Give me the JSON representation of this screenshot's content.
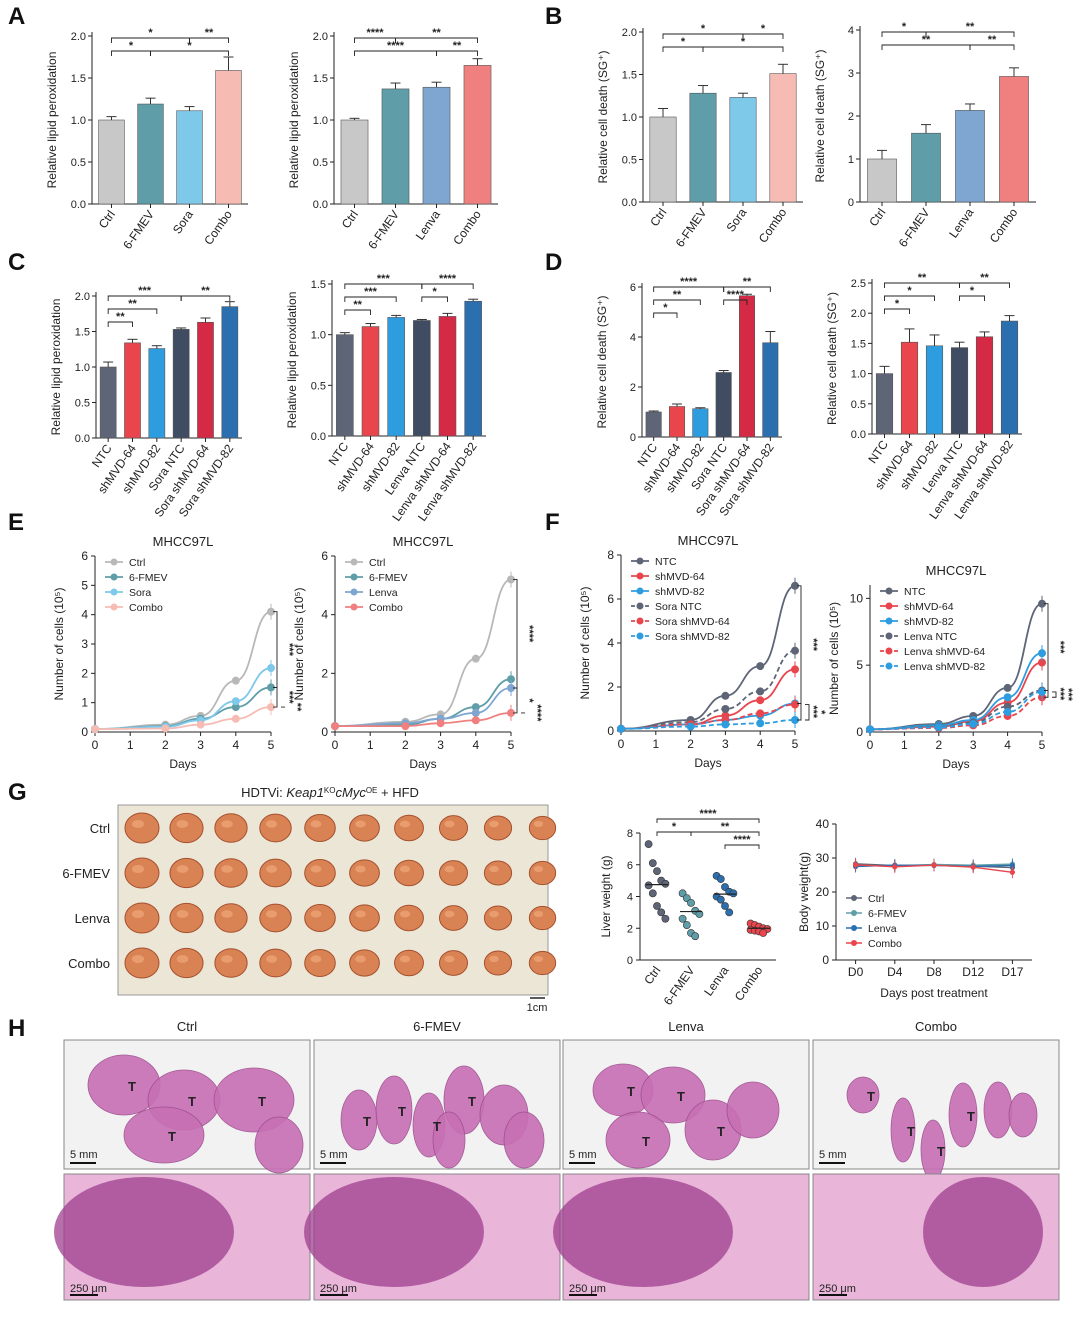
{
  "panel_letters": [
    "A",
    "B",
    "C",
    "D",
    "E",
    "F",
    "G",
    "H"
  ],
  "colors": {
    "ctrl": "#c8c8c8",
    "fmev": "#5f9ea8",
    "sora": "#7ec8ea",
    "lenva": "#7fa6d0",
    "combo_A": "#f6bcb4",
    "combo_A2": "#f08080",
    "ntc": "#5e6577",
    "sh64": "#e8454d",
    "sh82": "#2e9de0",
    "sora_ntc": "#404c62",
    "sh64_dark": "#d42a45",
    "sh82_dark": "#2b6fae"
  },
  "chart_data": [
    {
      "id": "A1",
      "type": "bar",
      "panel": "A",
      "ylabel": "Relative lipid peroxidation",
      "ylim": [
        0,
        2.0
      ],
      "yticks": [
        "0.0",
        "0.5",
        "1.0",
        "1.5",
        "2.0"
      ],
      "categories": [
        "Ctrl",
        "6-FMEV",
        "Sora",
        "Combo"
      ],
      "values": [
        1.0,
        1.19,
        1.11,
        1.59
      ],
      "errors": [
        0.04,
        0.07,
        0.05,
        0.16
      ],
      "colors": [
        "#c8c8c8",
        "#5f9ea8",
        "#7ec8ea",
        "#f6bcb4"
      ],
      "sig": [
        {
          "a": 0,
          "b": 2,
          "label": "*"
        },
        {
          "a": 2,
          "b": 3,
          "label": "**"
        },
        {
          "a": 0,
          "b": 1,
          "label": "*"
        },
        {
          "a": 1,
          "b": 3,
          "label": "*"
        }
      ]
    },
    {
      "id": "A2",
      "type": "bar",
      "panel": "A",
      "ylabel": "Relative lipid peroxidation",
      "ylim": [
        0,
        2.0
      ],
      "yticks": [
        "0.0",
        "0.5",
        "1.0",
        "1.5",
        "2.0"
      ],
      "categories": [
        "Ctrl",
        "6-FMEV",
        "Lenva",
        "Combo"
      ],
      "values": [
        1.0,
        1.37,
        1.39,
        1.65
      ],
      "errors": [
        0.02,
        0.07,
        0.06,
        0.08
      ],
      "colors": [
        "#c8c8c8",
        "#5f9ea8",
        "#7fa6d0",
        "#f08080"
      ],
      "sig": [
        {
          "a": 0,
          "b": 1,
          "label": "****"
        },
        {
          "a": 1,
          "b": 3,
          "label": "**"
        },
        {
          "a": 0,
          "b": 2,
          "label": "****"
        },
        {
          "a": 2,
          "b": 3,
          "label": "**"
        }
      ]
    },
    {
      "id": "B1",
      "type": "bar",
      "panel": "B",
      "ylabel": "Relative cell death (SG⁺)",
      "ylim": [
        0,
        2.0
      ],
      "yticks": [
        "0.0",
        "0.5",
        "1.0",
        "1.5",
        "2.0"
      ],
      "categories": [
        "Ctrl",
        "6-FMEV",
        "Sora",
        "Combo"
      ],
      "values": [
        1.0,
        1.28,
        1.23,
        1.51
      ],
      "errors": [
        0.1,
        0.09,
        0.05,
        0.11
      ],
      "colors": [
        "#c8c8c8",
        "#5f9ea8",
        "#7ec8ea",
        "#f6bcb4"
      ],
      "sig": [
        {
          "a": 0,
          "b": 2,
          "label": "*"
        },
        {
          "a": 2,
          "b": 3,
          "label": "*"
        },
        {
          "a": 0,
          "b": 1,
          "label": "*"
        },
        {
          "a": 1,
          "b": 3,
          "label": "*"
        }
      ]
    },
    {
      "id": "B2",
      "type": "bar",
      "panel": "B",
      "ylabel": "Relative cell death (SG⁺)",
      "ylim": [
        0,
        4
      ],
      "yticks": [
        "0",
        "1",
        "2",
        "3",
        "4"
      ],
      "categories": [
        "Ctrl",
        "6-FMEV",
        "Lenva",
        "Combo"
      ],
      "values": [
        1.0,
        1.6,
        2.13,
        2.92
      ],
      "errors": [
        0.2,
        0.2,
        0.15,
        0.2
      ],
      "colors": [
        "#c8c8c8",
        "#5f9ea8",
        "#7fa6d0",
        "#f08080"
      ],
      "sig": [
        {
          "a": 0,
          "b": 1,
          "label": "*"
        },
        {
          "a": 1,
          "b": 3,
          "label": "**"
        },
        {
          "a": 0,
          "b": 2,
          "label": "**"
        },
        {
          "a": 2,
          "b": 3,
          "label": "**"
        }
      ]
    },
    {
      "id": "C1",
      "type": "bar",
      "panel": "C",
      "ylabel": "Relative lipid peroxidation",
      "ylim": [
        0,
        2.0
      ],
      "yticks": [
        "0.0",
        "0.5",
        "1.0",
        "1.5",
        "2.0"
      ],
      "categories": [
        "NTC",
        "shMVD-64",
        "shMVD-82",
        "Sora NTC",
        "Sora shMVD-64",
        "Sora shMVD-82"
      ],
      "values": [
        1.0,
        1.34,
        1.26,
        1.53,
        1.63,
        1.85
      ],
      "errors": [
        0.07,
        0.05,
        0.04,
        0.02,
        0.06,
        0.07
      ],
      "colors": [
        "#5e6577",
        "#e8454d",
        "#2e9de0",
        "#404c62",
        "#d42a45",
        "#2b6fae"
      ],
      "sig": [
        {
          "a": 0,
          "b": 3,
          "label": "***"
        },
        {
          "a": 3,
          "b": 5,
          "label": "**"
        },
        {
          "a": 0,
          "b": 2,
          "label": "**"
        },
        {
          "a": 0,
          "b": 1,
          "label": "**"
        }
      ]
    },
    {
      "id": "C2",
      "type": "bar",
      "panel": "C",
      "ylabel": "Relative lipid peroxidation",
      "ylim": [
        0,
        1.5
      ],
      "yticks": [
        "0.0",
        "0.5",
        "1.0",
        "1.5"
      ],
      "categories": [
        "NTC",
        "shMVD-64",
        "shMVD-82",
        "Lenva NTC",
        "Lenva shMVD-64",
        "Lenva shMVD-82"
      ],
      "values": [
        1.0,
        1.08,
        1.17,
        1.14,
        1.18,
        1.33
      ],
      "errors": [
        0.02,
        0.03,
        0.02,
        0.01,
        0.03,
        0.02
      ],
      "colors": [
        "#5e6577",
        "#e8454d",
        "#2e9de0",
        "#404c62",
        "#d42a45",
        "#2b6fae"
      ],
      "sig": [
        {
          "a": 0,
          "b": 3,
          "label": "***"
        },
        {
          "a": 3,
          "b": 5,
          "label": "****"
        },
        {
          "a": 0,
          "b": 2,
          "label": "***"
        },
        {
          "a": 3,
          "b": 4,
          "label": "*"
        },
        {
          "a": 0,
          "b": 1,
          "label": "**"
        }
      ]
    },
    {
      "id": "D1",
      "type": "bar",
      "panel": "D",
      "ylabel": "Relative cell death (SG⁺)",
      "ylim": [
        0,
        6
      ],
      "yticks": [
        "0",
        "2",
        "4",
        "6"
      ],
      "categories": [
        "NTC",
        "shMVD-64",
        "shMVD-82",
        "Sora NTC",
        "Sora shMVD-64",
        "Sora shMVD-82"
      ],
      "values": [
        1.0,
        1.22,
        1.13,
        2.58,
        5.65,
        3.77
      ],
      "errors": [
        0.04,
        0.1,
        0.04,
        0.08,
        0.06,
        0.45
      ],
      "colors": [
        "#5e6577",
        "#e8454d",
        "#2e9de0",
        "#404c62",
        "#d42a45",
        "#2b6fae"
      ],
      "sig": [
        {
          "a": 0,
          "b": 3,
          "label": "****"
        },
        {
          "a": 3,
          "b": 5,
          "label": "**"
        },
        {
          "a": 0,
          "b": 2,
          "label": "**"
        },
        {
          "a": 3,
          "b": 4,
          "label": "****"
        },
        {
          "a": 0,
          "b": 1,
          "label": "*"
        }
      ]
    },
    {
      "id": "D2",
      "type": "bar",
      "panel": "D",
      "ylabel": "Relative cell death (SG⁺)",
      "ylim": [
        0,
        2.5
      ],
      "yticks": [
        "0.0",
        "0.5",
        "1.0",
        "1.5",
        "2.0",
        "2.5"
      ],
      "categories": [
        "NTC",
        "shMVD-64",
        "shMVD-82",
        "Lenva NTC",
        "Lenva shMVD-64",
        "Lenva shMVD-82"
      ],
      "values": [
        1.0,
        1.52,
        1.46,
        1.43,
        1.61,
        1.87
      ],
      "errors": [
        0.12,
        0.22,
        0.18,
        0.09,
        0.08,
        0.09
      ],
      "colors": [
        "#5e6577",
        "#e8454d",
        "#2e9de0",
        "#404c62",
        "#d42a45",
        "#2b6fae"
      ],
      "sig": [
        {
          "a": 0,
          "b": 3,
          "label": "**"
        },
        {
          "a": 3,
          "b": 5,
          "label": "**"
        },
        {
          "a": 0,
          "b": 2,
          "label": "*"
        },
        {
          "a": 3,
          "b": 4,
          "label": "*"
        },
        {
          "a": 0,
          "b": 1,
          "label": "*"
        }
      ]
    },
    {
      "id": "E1",
      "type": "line",
      "panel": "E",
      "title": "MHCC97L",
      "xlabel": "Days",
      "ylabel": "Number of cells (10⁵)",
      "xlim": [
        0,
        5
      ],
      "ylim": [
        0,
        6
      ],
      "xticks": [
        "0",
        "1",
        "2",
        "3",
        "4",
        "5"
      ],
      "yticks": [
        "0",
        "1",
        "2",
        "3",
        "4",
        "5",
        "6"
      ],
      "x": [
        0,
        2,
        3,
        4,
        5
      ],
      "series": [
        {
          "name": "Ctrl",
          "color": "#b8b8b8",
          "values": [
            0.1,
            0.25,
            0.55,
            1.75,
            4.1
          ]
        },
        {
          "name": "6-FMEV",
          "color": "#5f9ea8",
          "values": [
            0.1,
            0.2,
            0.45,
            0.85,
            1.52
          ]
        },
        {
          "name": "Sora",
          "color": "#7ec8ea",
          "values": [
            0.1,
            0.18,
            0.4,
            1.05,
            2.18
          ]
        },
        {
          "name": "Combo",
          "color": "#f6bcb4",
          "values": [
            0.1,
            0.12,
            0.25,
            0.45,
            0.85
          ]
        }
      ],
      "sig_labels": [
        "***",
        "***",
        "**"
      ]
    },
    {
      "id": "E2",
      "type": "line",
      "panel": "E",
      "title": "MHCC97L",
      "xlabel": "Days",
      "ylabel": "Number of cells (10⁵)",
      "xlim": [
        0,
        5
      ],
      "ylim": [
        0,
        6
      ],
      "xticks": [
        "0",
        "1",
        "2",
        "3",
        "4",
        "5"
      ],
      "yticks": [
        "0",
        "2",
        "4",
        "6"
      ],
      "x": [
        0,
        2,
        3,
        4,
        5
      ],
      "series": [
        {
          "name": "Ctrl",
          "color": "#b8b8b8",
          "values": [
            0.2,
            0.35,
            0.6,
            2.5,
            5.2
          ]
        },
        {
          "name": "6-FMEV",
          "color": "#5f9ea8",
          "values": [
            0.2,
            0.25,
            0.45,
            0.85,
            1.8
          ]
        },
        {
          "name": "Lenva",
          "color": "#7fa6d0",
          "values": [
            0.2,
            0.3,
            0.45,
            0.65,
            1.5
          ]
        },
        {
          "name": "Combo",
          "color": "#f08080",
          "values": [
            0.2,
            0.2,
            0.3,
            0.4,
            0.65
          ]
        }
      ],
      "sig_labels": [
        "****",
        "*",
        "****"
      ]
    },
    {
      "id": "F1",
      "type": "line",
      "panel": "F",
      "title": "MHCC97L",
      "xlabel": "Days",
      "ylabel": "Number of cells (10⁵)",
      "xlim": [
        0,
        5
      ],
      "ylim": [
        0,
        8
      ],
      "xticks": [
        "0",
        "1",
        "2",
        "3",
        "4",
        "5"
      ],
      "yticks": [
        "0",
        "2",
        "4",
        "6",
        "8"
      ],
      "x": [
        0,
        2,
        3,
        4,
        5
      ],
      "series": [
        {
          "name": "NTC",
          "color": "#5e6577",
          "dash": false,
          "values": [
            0.1,
            0.5,
            1.6,
            2.95,
            6.6
          ]
        },
        {
          "name": "shMVD-64",
          "color": "#e8454d",
          "dash": false,
          "values": [
            0.1,
            0.3,
            0.7,
            1.4,
            2.8
          ]
        },
        {
          "name": "shMVD-82",
          "color": "#2e9de0",
          "dash": false,
          "values": [
            0.1,
            0.3,
            0.5,
            0.7,
            1.25
          ]
        },
        {
          "name": "Sora NTC",
          "color": "#5e6577",
          "dash": true,
          "values": [
            0.1,
            0.4,
            1.0,
            1.8,
            3.65
          ]
        },
        {
          "name": "Sora shMVD-64",
          "color": "#e8454d",
          "dash": true,
          "values": [
            0.1,
            0.3,
            0.5,
            0.8,
            1.2
          ]
        },
        {
          "name": "Sora shMVD-82",
          "color": "#2e9de0",
          "dash": true,
          "values": [
            0.1,
            0.2,
            0.3,
            0.35,
            0.5
          ]
        }
      ],
      "sig_labels": [
        "***",
        "***",
        "*"
      ]
    },
    {
      "id": "F2",
      "type": "line",
      "panel": "F",
      "title": "MHCC97L",
      "xlabel": "Days",
      "ylabel": "Number of cells (10⁵)",
      "xlim": [
        0,
        5
      ],
      "ylim": [
        0,
        11
      ],
      "xticks": [
        "0",
        "1",
        "2",
        "3",
        "4",
        "5"
      ],
      "yticks": [
        "0",
        "5",
        "10"
      ],
      "x": [
        0,
        2,
        3,
        4,
        5
      ],
      "series": [
        {
          "name": "NTC",
          "color": "#5e6577",
          "dash": false,
          "values": [
            0.2,
            0.6,
            1.2,
            3.3,
            9.6
          ]
        },
        {
          "name": "shMVD-64",
          "color": "#e8454d",
          "dash": false,
          "values": [
            0.2,
            0.4,
            0.8,
            2.2,
            5.2
          ]
        },
        {
          "name": "shMVD-82",
          "color": "#2e9de0",
          "dash": false,
          "values": [
            0.2,
            0.5,
            0.9,
            2.6,
            5.9
          ]
        },
        {
          "name": "Lenva NTC",
          "color": "#5e6577",
          "dash": true,
          "values": [
            0.2,
            0.4,
            0.7,
            1.9,
            3.1
          ]
        },
        {
          "name": "Lenva shMVD-64",
          "color": "#e8454d",
          "dash": true,
          "values": [
            0.2,
            0.3,
            0.5,
            1.2,
            2.6
          ]
        },
        {
          "name": "Lenva shMVD-82",
          "color": "#2e9de0",
          "dash": true,
          "values": [
            0.2,
            0.35,
            0.6,
            1.5,
            3.0
          ]
        }
      ],
      "sig_labels": [
        "***",
        "***",
        "***"
      ]
    },
    {
      "id": "G2",
      "type": "scatter",
      "panel": "G",
      "ylabel": "Liver weight (g)",
      "ylim": [
        0,
        8
      ],
      "yticks": [
        "0",
        "2",
        "4",
        "6",
        "8"
      ],
      "categories": [
        "Ctrl",
        "6-FMEV",
        "Lenva",
        "Combo"
      ],
      "colors": [
        "#5e6577",
        "#5f9ea8",
        "#2b6fae",
        "#e8454d"
      ],
      "points": [
        [
          7.3,
          6.1,
          5.6,
          5.0,
          4.8,
          4.7,
          4.2,
          3.4,
          3.0,
          2.6
        ],
        [
          4.2,
          3.9,
          3.6,
          3.1,
          2.9,
          2.6,
          2.2,
          1.7,
          1.5
        ],
        [
          5.3,
          5.1,
          4.6,
          4.3,
          4.2,
          4.0,
          3.8,
          3.4,
          3.0
        ],
        [
          2.3,
          2.2,
          2.1,
          2.0,
          1.95,
          1.9,
          1.85,
          1.8,
          1.7
        ]
      ],
      "means": [
        4.75,
        3.05,
        4.15,
        2.0
      ],
      "sig": [
        {
          "a": 0,
          "b": 3,
          "label": "****"
        },
        {
          "a": 0,
          "b": 1,
          "label": "*"
        },
        {
          "a": 1,
          "b": 3,
          "label": "**"
        },
        {
          "a": 2,
          "b": 3,
          "label": "****"
        }
      ]
    },
    {
      "id": "G3",
      "type": "line",
      "panel": "G",
      "xlabel": "Days post treatment",
      "ylabel": "Body weight(g)",
      "ylim": [
        0,
        40
      ],
      "yticks": [
        "0",
        "10",
        "20",
        "30",
        "40"
      ],
      "categories": [
        "D0",
        "D4",
        "D8",
        "D12",
        "D17"
      ],
      "series": [
        {
          "name": "Ctrl",
          "color": "#5e6577",
          "values": [
            28.3,
            27.8,
            28.0,
            27.6,
            27.2
          ]
        },
        {
          "name": "6-FMEV",
          "color": "#5f9ea8",
          "values": [
            27.8,
            27.6,
            28.1,
            27.9,
            28.2
          ]
        },
        {
          "name": "Lenva",
          "color": "#2b6fae",
          "values": [
            27.5,
            27.9,
            27.8,
            27.5,
            27.8
          ]
        },
        {
          "name": "Combo",
          "color": "#e8454d",
          "values": [
            28.0,
            27.4,
            27.9,
            27.3,
            25.8
          ]
        }
      ]
    }
  ],
  "panel_G": {
    "title_prefix": "HDTVi: ",
    "title_gene1": "Keap1",
    "title_sup1": "KO",
    "title_gene2": "cMyc",
    "title_sup2": "OE",
    "title_suffix": " + HFD",
    "row_labels": [
      "Ctrl",
      "6-FMEV",
      "Lenva",
      "Combo"
    ],
    "row_label_colors": [
      "#555555",
      "#5f9ea8",
      "#2b6fae",
      "#e8454d"
    ],
    "scale_label": "1cm"
  },
  "panel_H": {
    "column_labels": [
      "Ctrl",
      "6-FMEV",
      "Lenva",
      "Combo"
    ],
    "column_label_colors": [
      "#555555",
      "#5f9ea8",
      "#2b6fae",
      "#e8454d"
    ],
    "tumor_mark": "T",
    "scale_top": "5 mm",
    "scale_bottom": "250 μm"
  }
}
